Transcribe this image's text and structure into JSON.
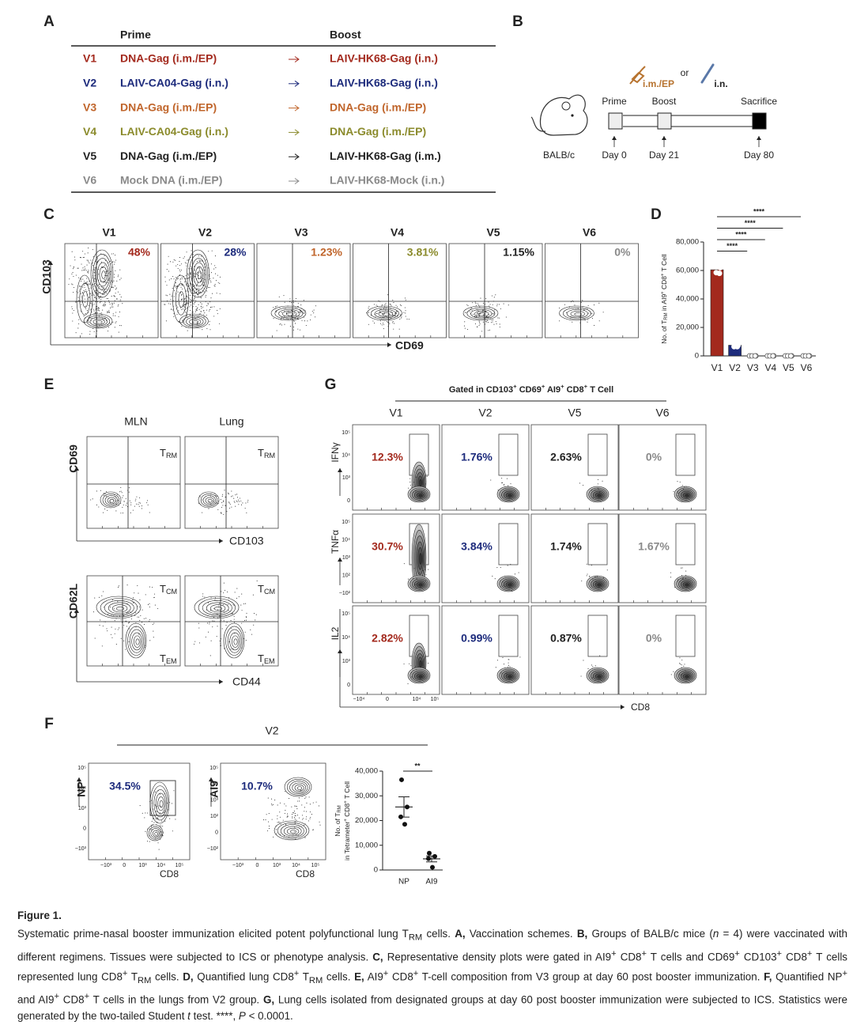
{
  "panel_labels": [
    "A",
    "B",
    "C",
    "D",
    "E",
    "F",
    "G"
  ],
  "A": {
    "headers": [
      "Prime",
      "Boost"
    ],
    "rows": [
      {
        "group": "V1",
        "prime": "DNA-Gag (i.m./EP)",
        "boost": "LAIV-HK68-Gag (i.n.)",
        "color": "#a3291d"
      },
      {
        "group": "V2",
        "prime": "LAIV-CA04-Gag (i.n.)",
        "boost": "LAIV-HK68-Gag (i.n.)",
        "color": "#1d2b7c"
      },
      {
        "group": "V3",
        "prime": "DNA-Gag (i.m./EP)",
        "boost": "DNA-Gag (i.m./EP)",
        "color": "#c0652b"
      },
      {
        "group": "V4",
        "prime": "LAIV-CA04-Gag (i.n.)",
        "boost": "DNA-Gag (i.m./EP)",
        "color": "#8b8b2c"
      },
      {
        "group": "V5",
        "prime": "DNA-Gag (i.m./EP)",
        "boost": "LAIV-HK68-Gag (i.m.)",
        "color": "#222222"
      },
      {
        "group": "V6",
        "prime": "Mock DNA (i.m./EP)",
        "boost": "LAIV-HK68-Mock (i.n.)",
        "color": "#8a8a8a"
      }
    ]
  },
  "B": {
    "or": "or",
    "route1": "i.m./EP",
    "route2": "i.n.",
    "stages": [
      "Prime",
      "Boost",
      "Sacrifice"
    ],
    "days": [
      "Day 0",
      "Day 21",
      "Day 80"
    ],
    "strain": "BALB/c"
  },
  "C": {
    "groups": [
      "V1",
      "V2",
      "V3",
      "V4",
      "V5",
      "V6"
    ],
    "percents": [
      "48%",
      "28%",
      "1.23%",
      "3.81%",
      "1.15%",
      "0%"
    ],
    "colors": [
      "#a3291d",
      "#1d2b7c",
      "#c0652b",
      "#8b8b2c",
      "#222222",
      "#8a8a8a"
    ],
    "y_axis": "CD103",
    "x_axis": "CD69"
  },
  "chart_data": [
    {
      "type": "bar",
      "y_label": [
        "No. of T",
        "RM",
        " in AI9",
        "+",
        " CD8",
        "+",
        " T Cell"
      ],
      "categories": [
        "V1",
        "V2",
        "V3",
        "V4",
        "V5",
        "V6"
      ],
      "values": [
        60500,
        7500,
        0,
        0,
        0,
        0
      ],
      "points": [
        [
          63500,
          62000,
          58500,
          58000
        ],
        [
          9500,
          7500,
          6500,
          6500
        ],
        [
          0,
          0,
          0,
          0
        ],
        [
          0,
          0,
          0,
          0
        ],
        [
          0,
          0,
          0,
          0
        ],
        [
          0,
          0,
          0,
          0
        ]
      ],
      "colors": [
        "#a3291d",
        "#1d2b7c",
        "#ffffff",
        "#ffffff",
        "#ffffff",
        "#ffffff"
      ],
      "significance": [
        "****",
        "****",
        "****",
        "****"
      ],
      "ylim": [
        0,
        80000
      ],
      "yticks": [
        {
          "value": 0,
          "label": "0"
        },
        {
          "value": 20000,
          "label": "20,000"
        },
        {
          "value": 40000,
          "label": "40,000"
        },
        {
          "value": 60000,
          "label": "60,000"
        },
        {
          "value": 80000,
          "label": "80,000"
        }
      ]
    },
    {
      "type": "dot",
      "y_label": [
        [
          "No. of T",
          "RM"
        ],
        [
          "in Tetrameter",
          "+",
          " CD8",
          "+",
          " T Cell"
        ]
      ],
      "categories": [
        "NP",
        "AI9"
      ],
      "points": [
        [
          36500,
          25500,
          21500,
          18500
        ],
        [
          6800,
          5500,
          4600,
          1100
        ]
      ],
      "mean": [
        25500,
        4500
      ],
      "sem": [
        4100,
        1200
      ],
      "significance": "**",
      "ylim": [
        0,
        40000
      ],
      "yticks": [
        {
          "value": 0,
          "label": "0"
        },
        {
          "value": 10000,
          "label": "10,000"
        },
        {
          "value": 20000,
          "label": "20,000"
        },
        {
          "value": 30000,
          "label": "30,000"
        },
        {
          "value": 40000,
          "label": "40,000"
        }
      ]
    }
  ],
  "E": {
    "tissues": [
      "MLN",
      "Lung"
    ],
    "trm": [
      "T",
      "RM"
    ],
    "tcm": [
      "T",
      "CM"
    ],
    "tem": [
      "T",
      "EM"
    ],
    "axes": [
      "CD69",
      "CD103",
      "CD62L",
      "CD44"
    ]
  },
  "F": {
    "group": "V2",
    "y_axes": [
      "NP",
      "AI9"
    ],
    "x_axis": "CD8",
    "percents": [
      "34.5%",
      "10.7%"
    ],
    "color": "#1d2b7c",
    "yticks": [
      [
        "10⁵",
        "10⁴",
        "10³",
        "0",
        "−10³"
      ],
      [
        "10⁵",
        "10⁴",
        "10³",
        "10²",
        "0",
        "−10²"
      ]
    ],
    "xticks": [
      "−10³",
      "0",
      "10³",
      "10⁴",
      "10⁵"
    ]
  },
  "G": {
    "header": [
      "Gated in CD103",
      "+",
      " CD69",
      "+",
      " AI9",
      "+",
      " CD8",
      "+",
      " T Cell"
    ],
    "groups": [
      "V1",
      "V2",
      "V5",
      "V6"
    ],
    "colors": [
      "#a3291d",
      "#1d2b7c",
      "#222222",
      "#8a8a8a"
    ],
    "rows": [
      {
        "name": "IFNγ",
        "percents": [
          "12.3%",
          "1.76%",
          "2.63%",
          "0%"
        ],
        "yticks": [
          "10⁵",
          "10⁴",
          "10³",
          "0"
        ]
      },
      {
        "name": "TNFα",
        "percents": [
          "30.7%",
          "3.84%",
          "1.74%",
          "1.67%"
        ],
        "yticks": [
          "10⁵",
          "10⁴",
          "10³",
          "10²",
          "−10²"
        ]
      },
      {
        "name": "IL2",
        "percents": [
          "2.82%",
          "0.99%",
          "0.87%",
          "0%"
        ],
        "yticks": [
          "10⁵",
          "10⁴",
          "10³",
          "0"
        ]
      }
    ],
    "xticks": [
      "−10⁴",
      "0",
      "10⁴",
      "10⁵"
    ],
    "x_axis": "CD8"
  },
  "caption": {
    "title": "Figure 1.",
    "segments": [
      "Systematic prime-nasal booster immunization elicited potent polyfunctional lung T",
      "RM",
      " cells. ",
      "A,",
      " Vaccination schemes. ",
      "B,",
      " Groups of BALB/c mice (",
      "n",
      " = 4) were vaccinated with different regimens. Tissues were subjected to ICS or phenotype analysis. ",
      "C,",
      " Representative density plots were gated in AI9",
      "+",
      " CD8",
      "+",
      " T cells and CD69",
      "+",
      " CD103",
      "+",
      " CD8",
      "+",
      " T cells represented lung CD8",
      "+",
      " T",
      "RM",
      " cells. ",
      "D,",
      " Quantified lung CD8",
      "+",
      " T",
      "RM",
      " cells. ",
      "E,",
      " AI9",
      "+",
      " CD8",
      "+",
      " T-cell composition from V3 group at day 60 post booster immunization. ",
      "F,",
      " Quantified NP",
      "+",
      " and AI9",
      "+",
      " CD8",
      "+",
      " T cells in the lungs from V2 group. ",
      "G,",
      " Lung cells isolated from designated groups at day 60 post booster immunization were subjected to ICS. Statistics were generated by the two-tailed Student ",
      "t",
      " test. ****, ",
      "P",
      " < 0.0001."
    ]
  }
}
